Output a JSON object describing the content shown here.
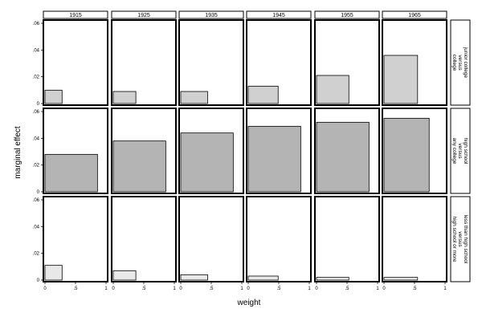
{
  "chart_data": {
    "type": "bar",
    "xlabel": "weight",
    "ylabel": "marginal effect",
    "xlim": [
      0,
      1
    ],
    "ylim": [
      0,
      0.06
    ],
    "x_ticks": [
      "0",
      ".5",
      "1"
    ],
    "y_ticks": [
      "0",
      ".02",
      ".04",
      ".06"
    ],
    "columns": [
      "1915",
      "1925",
      "1935",
      "1945",
      "1955",
      "1965"
    ],
    "rows": [
      {
        "label_lines": [
          "junior college",
          "versus",
          "college"
        ],
        "color": "#d0d0d0",
        "bars": [
          {
            "width": 0.28,
            "value": 0.01
          },
          {
            "width": 0.37,
            "value": 0.009
          },
          {
            "width": 0.44,
            "value": 0.009
          },
          {
            "width": 0.49,
            "value": 0.013
          },
          {
            "width": 0.53,
            "value": 0.021
          },
          {
            "width": 0.55,
            "value": 0.036
          }
        ]
      },
      {
        "label_lines": [
          "high school",
          "versus",
          "any college"
        ],
        "color": "#b4b4b4",
        "bars": [
          {
            "width": 0.86,
            "value": 0.028
          },
          {
            "width": 0.86,
            "value": 0.038
          },
          {
            "width": 0.86,
            "value": 0.044
          },
          {
            "width": 0.86,
            "value": 0.049
          },
          {
            "width": 0.86,
            "value": 0.052
          },
          {
            "width": 0.74,
            "value": 0.055
          }
        ]
      },
      {
        "label_lines": [
          "less than high school",
          "versus",
          "high school or more"
        ],
        "color": "#e8e8e8",
        "bars": [
          {
            "width": 0.28,
            "value": 0.011
          },
          {
            "width": 0.37,
            "value": 0.007
          },
          {
            "width": 0.44,
            "value": 0.004
          },
          {
            "width": 0.49,
            "value": 0.003
          },
          {
            "width": 0.53,
            "value": 0.002
          },
          {
            "width": 0.55,
            "value": 0.002
          }
        ]
      }
    ]
  }
}
